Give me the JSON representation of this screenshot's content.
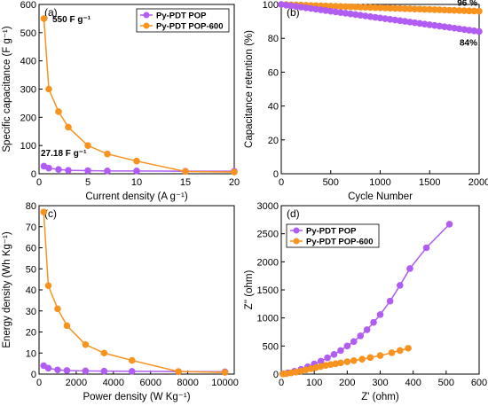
{
  "colors": {
    "purple": "#b15cf2",
    "orange": "#f7931e",
    "axis": "#000000"
  },
  "chart_data": [
    {
      "type": "line",
      "panel_label": "(a)",
      "xlabel": "Current density (A g⁻¹)",
      "ylabel": "Specific capacitance (F g⁻¹)",
      "xlim": [
        0,
        20
      ],
      "ylim": [
        0,
        600
      ],
      "xticks": [
        0,
        5,
        10,
        15,
        20
      ],
      "yticks": [
        0,
        100,
        200,
        300,
        400,
        500,
        600
      ],
      "grid": false,
      "legend": {
        "placement": "top-right",
        "entries": [
          "Py-PDT POP",
          "Py-PDT POP-600"
        ]
      },
      "annotations": [
        {
          "text": "550 F g⁻¹",
          "x": 1.0,
          "y": 550
        },
        {
          "text": "27.18 F g⁻¹",
          "x": 0.2,
          "y": 75
        }
      ],
      "series": [
        {
          "name": "Py-PDT POP",
          "color": "purple",
          "x": [
            0.5,
            1,
            2,
            3,
            5,
            7,
            10,
            15,
            20
          ],
          "y": [
            27,
            20,
            15,
            12,
            11,
            10,
            10,
            9,
            9
          ]
        },
        {
          "name": "Py-PDT POP-600",
          "color": "orange",
          "x": [
            0.5,
            1,
            2,
            3,
            5,
            7,
            10,
            15,
            20
          ],
          "y": [
            550,
            300,
            220,
            165,
            100,
            70,
            45,
            8,
            6
          ]
        }
      ]
    },
    {
      "type": "line",
      "panel_label": "(b)",
      "xlabel": "Cycle Number",
      "ylabel": "Capacitance retention (%)",
      "xlim": [
        0,
        2000
      ],
      "ylim": [
        0,
        100
      ],
      "xticks": [
        0,
        500,
        1000,
        1500,
        2000
      ],
      "yticks": [
        0,
        20,
        40,
        60,
        80,
        100
      ],
      "grid": false,
      "annotations": [
        {
          "text": "96 %",
          "x": 2000,
          "y": 96
        },
        {
          "text": "84%",
          "x": 2000,
          "y": 84
        }
      ],
      "series": [
        {
          "name": "Py-PDT POP-600",
          "color": "orange",
          "x_start": 0,
          "x_end": 2000,
          "n": 41,
          "y_start": 100,
          "y_end": 96
        },
        {
          "name": "Py-PDT POP",
          "color": "purple",
          "x_start": 0,
          "x_end": 2000,
          "n": 41,
          "y_start": 100,
          "y_end": 84
        }
      ]
    },
    {
      "type": "line",
      "panel_label": "(c)",
      "xlabel": "Power density (W Kg⁻¹)",
      "ylabel": "Energy density (Wh Kg⁻¹)",
      "xlim": [
        0,
        10500
      ],
      "ylim": [
        0,
        80
      ],
      "xticks": [
        0,
        2000,
        4000,
        6000,
        8000,
        10000
      ],
      "yticks": [
        0,
        10,
        20,
        30,
        40,
        50,
        60,
        70,
        80
      ],
      "grid": false,
      "series": [
        {
          "name": "Py-PDT POP",
          "color": "purple",
          "x": [
            250,
            500,
            1000,
            1500,
            2500,
            3500,
            5000,
            7500,
            10000
          ],
          "y": [
            4,
            2.8,
            2.0,
            1.7,
            1.5,
            1.4,
            1.3,
            1.2,
            1.1
          ]
        },
        {
          "name": "Py-PDT POP-600",
          "color": "orange",
          "x": [
            250,
            500,
            1000,
            1500,
            2500,
            3500,
            5000,
            7500,
            10000
          ],
          "y": [
            77,
            42,
            31,
            23,
            14,
            10,
            6.5,
            1.2,
            0.8
          ]
        }
      ]
    },
    {
      "type": "line",
      "panel_label": "(d)",
      "xlabel": "Z' (ohm)",
      "ylabel": "Z'' (ohm)",
      "xlim": [
        0,
        600
      ],
      "ylim": [
        0,
        3000
      ],
      "xticks": [
        0,
        100,
        200,
        300,
        400,
        500,
        600
      ],
      "yticks": [
        0,
        500,
        1000,
        1500,
        2000,
        2500,
        3000
      ],
      "grid": false,
      "legend": {
        "placement": "top-left",
        "entries": [
          "Py-PDT POP",
          "Py-PDT POP-600"
        ]
      },
      "series": [
        {
          "name": "Py-PDT POP",
          "color": "purple",
          "x": [
            5,
            20,
            40,
            60,
            80,
            100,
            120,
            140,
            160,
            180,
            200,
            220,
            240,
            260,
            280,
            300,
            330,
            360,
            390,
            440,
            510
          ],
          "y": [
            5,
            20,
            50,
            85,
            130,
            180,
            230,
            290,
            350,
            420,
            500,
            580,
            680,
            790,
            920,
            1060,
            1300,
            1580,
            1880,
            2250,
            2670
          ]
        },
        {
          "name": "Py-PDT POP-600",
          "color": "orange",
          "x": [
            5,
            15,
            30,
            45,
            60,
            75,
            90,
            105,
            120,
            135,
            150,
            165,
            180,
            200,
            220,
            245,
            270,
            300,
            335,
            360,
            385
          ],
          "y": [
            2,
            8,
            20,
            35,
            55,
            75,
            95,
            115,
            135,
            155,
            170,
            185,
            200,
            220,
            240,
            265,
            295,
            330,
            380,
            420,
            460
          ]
        }
      ]
    }
  ]
}
